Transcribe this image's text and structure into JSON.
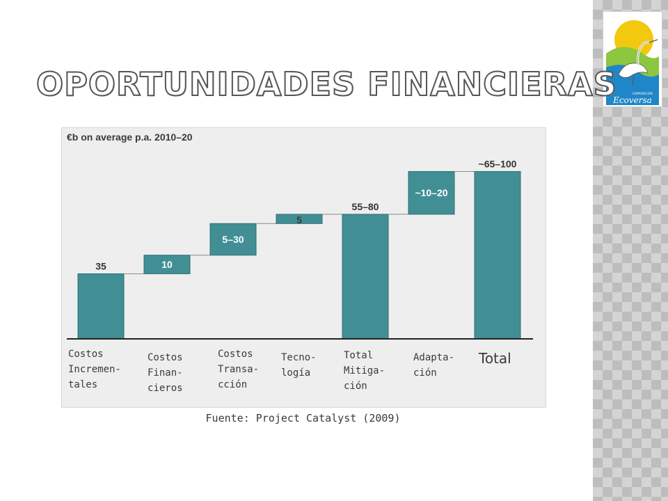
{
  "slide": {
    "title": "OPORTUNIDADES FINANCIERAS",
    "source": "Fuente: Project Catalyst (2009)"
  },
  "logo": {
    "label_small": "CORPORACIÓN",
    "label_name": "Ecoversa",
    "colors": {
      "sun": "#f2c90f",
      "hill": "#8dc63f",
      "water": "#1f86c7",
      "bird": "#ffffff",
      "text": "#1f5f9f"
    },
    "icon": "heron-bird-icon"
  },
  "chart_data": {
    "type": "bar",
    "subtype": "waterfall",
    "title": "€b on average p.a. 2010–20",
    "ylim": [
      0,
      110
    ],
    "bar_color": "#418f95",
    "bars": [
      {
        "category": "Costos Incremen-tales",
        "label": "35",
        "start": 0,
        "end": 35
      },
      {
        "category": "Costos Finan-cieros",
        "label": "10",
        "start": 35,
        "end": 45
      },
      {
        "category": "Costos Transa-cción",
        "label": "5–30",
        "start": 45,
        "end": 62
      },
      {
        "category": "Tecno-logía",
        "label": "5",
        "start": 62,
        "end": 67
      },
      {
        "category": "Total Mitiga-ción",
        "label": "55–80",
        "start": 0,
        "end": 67
      },
      {
        "category": "Adapta-ción",
        "label": "~10–20",
        "start": 67,
        "end": 90
      },
      {
        "category": "Total",
        "label": "~65–100",
        "start": 0,
        "end": 90
      }
    ],
    "categories_display": [
      "Costos\nIncremen-\ntales",
      "Costos\nFinan-\ncieros",
      "Costos\nTransa-\ncción",
      "Tecno-\nlogía",
      "Total\nMitiga-\nción",
      "Adapta-\nción",
      "Total"
    ]
  }
}
